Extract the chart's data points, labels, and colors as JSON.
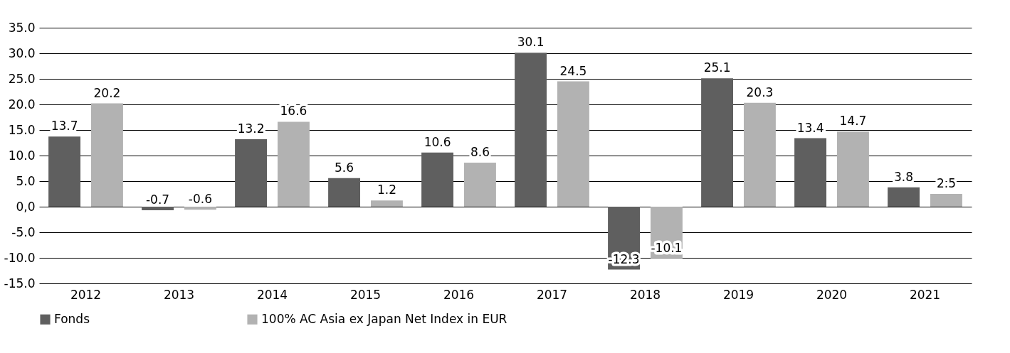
{
  "chart_data": {
    "type": "bar",
    "categories": [
      "2012",
      "2013",
      "2014",
      "2015",
      "2016",
      "2017",
      "2018",
      "2019",
      "2020",
      "2021"
    ],
    "series": [
      {
        "name": "Fonds",
        "color": "#5f5f5f",
        "values": [
          13.7,
          -0.7,
          13.2,
          5.6,
          10.6,
          30.1,
          -12.3,
          25.1,
          13.4,
          3.8
        ]
      },
      {
        "name": "100% AC Asia ex Japan Net Index in EUR",
        "color": "#b2b2b2",
        "values": [
          20.2,
          -0.6,
          16.6,
          1.2,
          8.6,
          24.5,
          -10.1,
          20.3,
          14.7,
          2.5
        ]
      }
    ],
    "ylim": [
      -15,
      35
    ],
    "yticks": [
      {
        "value": -15,
        "label": "-15.0"
      },
      {
        "value": -10,
        "label": "-10.0"
      },
      {
        "value": -5,
        "label": "-5.0"
      },
      {
        "value": 0,
        "label": "0,0"
      },
      {
        "value": 5,
        "label": "5.0"
      },
      {
        "value": 10,
        "label": "10.0"
      },
      {
        "value": 15,
        "label": "15.0"
      },
      {
        "value": 20,
        "label": "20.0"
      },
      {
        "value": 25,
        "label": "25.0"
      },
      {
        "value": 30,
        "label": "30.0"
      },
      {
        "value": 35,
        "label": "35.0"
      }
    ],
    "grid": "y",
    "legend": "bottom",
    "data_labels": true
  }
}
